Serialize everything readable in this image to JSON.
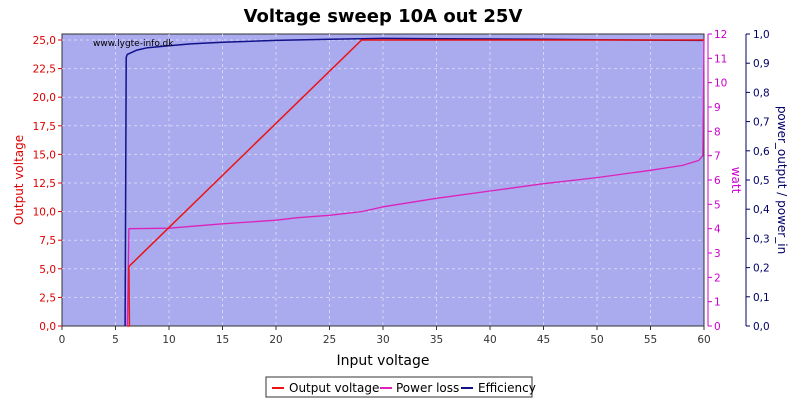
{
  "chart_data": {
    "type": "line",
    "title": "Voltage sweep 10A out 25V",
    "watermark": "www.lygte-info.dk",
    "xlabel": "Input voltage",
    "ylabel_left": "Output voltage",
    "ylabel_right": "watt",
    "ylabel_right2": "power_output / power_in",
    "xlim": [
      0,
      60
    ],
    "ylim_left": [
      0,
      25.5
    ],
    "ylim_right": [
      0,
      12
    ],
    "ylim_right2": [
      0,
      1.0
    ],
    "x_ticks": [
      "0",
      "5",
      "10",
      "15",
      "20",
      "25",
      "30",
      "35",
      "40",
      "45",
      "50",
      "55",
      "60"
    ],
    "y_left_ticks": [
      "0,0",
      "2,5",
      "5,0",
      "7,5",
      "10,0",
      "12,5",
      "15,0",
      "17,5",
      "20,0",
      "22,5",
      "25,0"
    ],
    "y_right_ticks": [
      "0",
      "1",
      "2",
      "3",
      "4",
      "5",
      "6",
      "7",
      "8",
      "9",
      "10",
      "11",
      "12"
    ],
    "y_right2_ticks": [
      "0,0",
      "0,1",
      "0,2",
      "0,3",
      "0,4",
      "0,5",
      "0,6",
      "0,7",
      "0,8",
      "0,9",
      "1,0"
    ],
    "grid": true,
    "legend_position": "bottom-center",
    "colors": {
      "plot_bg": "#aaaaee",
      "output_voltage": "#ee1111",
      "power_loss": "#dd22bb",
      "efficiency": "#111188",
      "left_axis": "#dd0000",
      "right_axis": "#cc00cc",
      "right2_axis": "#000066"
    },
    "series": [
      {
        "name": "Output voltage",
        "axis": "left",
        "x": [
          6.1,
          6.3,
          6.25,
          28.0,
          34.0,
          45.0,
          55.0,
          59.9,
          60.0
        ],
        "y": [
          0.0,
          0.0,
          5.2,
          25.0,
          25.0,
          25.0,
          25.0,
          25.0,
          25.0
        ]
      },
      {
        "name": "Power loss",
        "axis": "right",
        "x": [
          6.1,
          6.2,
          6.25,
          6.3,
          10.0,
          15.0,
          20.0,
          22.0,
          25.0,
          28.0,
          30.0,
          35.0,
          40.0,
          45.0,
          50.0,
          55.0,
          58.0,
          59.5,
          59.9,
          60.0
        ],
        "y": [
          0.0,
          2.4,
          4.0,
          4.0,
          4.02,
          4.2,
          4.35,
          4.45,
          4.55,
          4.7,
          4.9,
          5.25,
          5.55,
          5.85,
          6.1,
          6.4,
          6.6,
          6.8,
          7.0,
          11.8
        ]
      },
      {
        "name": "Efficiency",
        "axis": "right2",
        "x": [
          5.9,
          6.0,
          6.1,
          7.0,
          8.0,
          10.0,
          12.0,
          15.0,
          20.0,
          25.0,
          28.0,
          30.0,
          35.0,
          40.0,
          45.0,
          50.0,
          55.0,
          59.9
        ],
        "y": [
          0.0,
          0.92,
          0.93,
          0.945,
          0.953,
          0.96,
          0.966,
          0.972,
          0.978,
          0.982,
          0.984,
          0.985,
          0.984,
          0.983,
          0.982,
          0.98,
          0.979,
          0.978
        ]
      }
    ]
  }
}
